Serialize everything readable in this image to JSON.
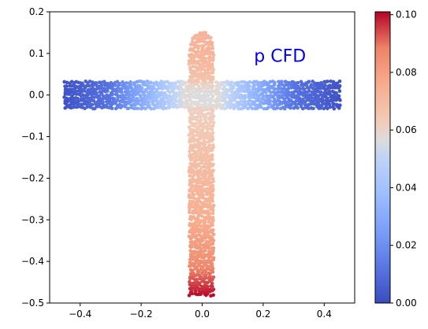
{
  "chart_data": {
    "type": "scatter",
    "annotation": "p CFD",
    "annotation_position": {
      "x": 0.17,
      "y": 0.08
    },
    "annotation_color": "#0000ff",
    "xlim": [
      -0.5,
      0.5
    ],
    "ylim": [
      -0.5,
      0.2
    ],
    "xticks": [
      -0.4,
      -0.2,
      0.0,
      0.2,
      0.4
    ],
    "xtick_labels": [
      "−0.4",
      "−0.2",
      "0.0",
      "0.2",
      "0.4"
    ],
    "yticks": [
      0.2,
      0.1,
      0.0,
      -0.1,
      -0.2,
      -0.3,
      -0.4,
      -0.5
    ],
    "ytick_labels": [
      "0.2",
      "0.1",
      "0.0",
      "−0.1",
      "−0.2",
      "−0.3",
      "−0.4",
      "−0.5"
    ],
    "grid": false,
    "colormap": "coolwarm",
    "colorbar": {
      "range": [
        0.0,
        0.101
      ],
      "ticks": [
        0.0,
        0.02,
        0.04,
        0.06,
        0.08,
        0.1
      ],
      "tick_labels": [
        "0.00",
        "0.02",
        "0.04",
        "0.06",
        "0.08",
        "0.10"
      ]
    },
    "regions": [
      {
        "name": "horizontal arm",
        "x_range": [
          -0.45,
          0.45
        ],
        "y_range": [
          -0.03,
          0.03
        ],
        "p_profile_x": [
          -0.45,
          -0.3,
          -0.15,
          -0.05,
          0.0,
          0.05,
          0.15,
          0.3,
          0.45
        ],
        "p_profile": [
          0.002,
          0.012,
          0.038,
          0.058,
          0.066,
          0.058,
          0.038,
          0.012,
          0.002
        ]
      },
      {
        "name": "vertical stem",
        "x_range": [
          -0.04,
          0.04
        ],
        "y_range": [
          -0.48,
          0.155
        ],
        "p_profile_y": [
          0.155,
          0.1,
          0.05,
          0.0,
          -0.05,
          -0.15,
          -0.3,
          -0.4,
          -0.48
        ],
        "p_profile": [
          0.072,
          0.072,
          0.068,
          0.06,
          0.062,
          0.068,
          0.075,
          0.085,
          0.1
        ]
      }
    ]
  }
}
